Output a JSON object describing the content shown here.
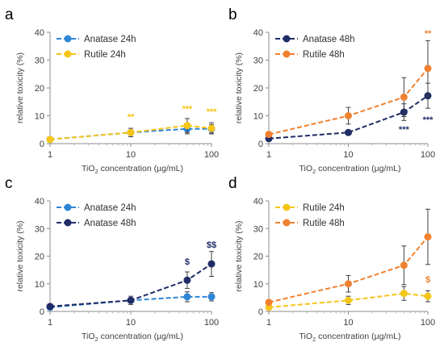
{
  "colors": {
    "anatase24": "#2E86D6",
    "anatase48": "#1F2C66",
    "rutile24": "#F5C518",
    "rutile48": "#F0812F"
  },
  "chart_data": [
    {
      "panel": "a",
      "type": "line",
      "xscale": "log",
      "x": [
        1,
        10,
        50,
        100
      ],
      "xticks": [
        "1",
        "10",
        "100"
      ],
      "ylim": [
        0,
        40
      ],
      "yticks": [
        "0",
        "10",
        "20",
        "30",
        "40"
      ],
      "xlabel": "TiO2 concentration (µg/mL)",
      "ylabel": "relative toxicity (%)",
      "legend_position": "top-left",
      "series": [
        {
          "name": "Anatase 24h",
          "color": "#2E86D6",
          "values": [
            1.5,
            4.0,
            5.3,
            5.3
          ],
          "errors": [
            0.5,
            1.5,
            1.8,
            1.5
          ]
        },
        {
          "name": "Rutile 24h",
          "color": "#F5C518",
          "values": [
            1.5,
            4.0,
            6.5,
            5.5
          ],
          "errors": [
            0.5,
            1.5,
            2.5,
            2.0
          ]
        }
      ],
      "annotations": [
        {
          "text": "**",
          "x": 10,
          "y": 8.5,
          "color": "#F5C518"
        },
        {
          "text": "***",
          "x": 50,
          "y": 11.5,
          "color": "#F5C518"
        },
        {
          "text": "***",
          "x": 100,
          "y": 10.5,
          "color": "#F5C518"
        }
      ]
    },
    {
      "panel": "b",
      "type": "line",
      "xscale": "log",
      "x": [
        1,
        10,
        50,
        100
      ],
      "xticks": [
        "1",
        "10",
        "100"
      ],
      "ylim": [
        0,
        40
      ],
      "yticks": [
        "0",
        "10",
        "20",
        "30",
        "40"
      ],
      "xlabel": "TiO2 concentration (µg/mL)",
      "ylabel": "relative toxicity (%)",
      "legend_position": "top-left",
      "series": [
        {
          "name": "Anatase 48h",
          "color": "#1F2C66",
          "values": [
            1.8,
            4.0,
            11.3,
            17.2
          ],
          "errors": [
            0.5,
            0.8,
            3.0,
            4.5
          ]
        },
        {
          "name": "Rutile 48h",
          "color": "#F0812F",
          "values": [
            3.3,
            10.0,
            16.7,
            27.0
          ],
          "errors": [
            0.7,
            3.0,
            7.0,
            10.0
          ]
        }
      ],
      "annotations": [
        {
          "text": "***",
          "x": 50,
          "y": 4.0,
          "color": "#1F2C66"
        },
        {
          "text": "***",
          "x": 100,
          "y": 7.5,
          "color": "#1F2C66"
        },
        {
          "text": "**",
          "x": 100,
          "y": 38.5,
          "color": "#F0812F"
        }
      ]
    },
    {
      "panel": "c",
      "type": "line",
      "xscale": "log",
      "x": [
        1,
        10,
        50,
        100
      ],
      "xticks": [
        "1",
        "10",
        "100"
      ],
      "ylim": [
        0,
        40
      ],
      "yticks": [
        "0",
        "10",
        "20",
        "30",
        "40"
      ],
      "xlabel": "TiO2 concentration (µg/mL)",
      "ylabel": "relative toxicity (%)",
      "legend_position": "top-left",
      "series": [
        {
          "name": "Anatase 24h",
          "color": "#2E86D6",
          "values": [
            1.5,
            4.0,
            5.3,
            5.3
          ],
          "errors": [
            0.5,
            1.5,
            1.8,
            1.5
          ]
        },
        {
          "name": "Anatase 48h",
          "color": "#1F2C66",
          "values": [
            1.8,
            4.0,
            11.3,
            17.2
          ],
          "errors": [
            0.5,
            0.8,
            3.0,
            4.5
          ]
        }
      ],
      "annotations": [
        {
          "text": "$",
          "x": 50,
          "y": 17.0,
          "color": "#1F2C66"
        },
        {
          "text": "$$",
          "x": 100,
          "y": 23.0,
          "color": "#1F2C66"
        }
      ]
    },
    {
      "panel": "d",
      "type": "line",
      "xscale": "log",
      "x": [
        1,
        10,
        50,
        100
      ],
      "xticks": [
        "1",
        "10",
        "100"
      ],
      "ylim": [
        0,
        40
      ],
      "yticks": [
        "0",
        "10",
        "20",
        "30",
        "40"
      ],
      "xlabel": "TiO2 concentration (µg/mL)",
      "ylabel": "relative toxicity (%)",
      "legend_position": "top-left",
      "series": [
        {
          "name": "Rutile 24h",
          "color": "#F5C518",
          "values": [
            1.5,
            4.0,
            6.5,
            5.5
          ],
          "errors": [
            0.5,
            1.5,
            2.5,
            2.0
          ]
        },
        {
          "name": "Rutile 48h",
          "color": "#F0812F",
          "values": [
            3.3,
            10.0,
            16.7,
            27.0
          ],
          "errors": [
            0.7,
            3.0,
            7.0,
            10.0
          ]
        }
      ],
      "annotations": [
        {
          "text": "$",
          "x": 100,
          "y": 10.5,
          "color": "#F0812F"
        }
      ]
    }
  ]
}
